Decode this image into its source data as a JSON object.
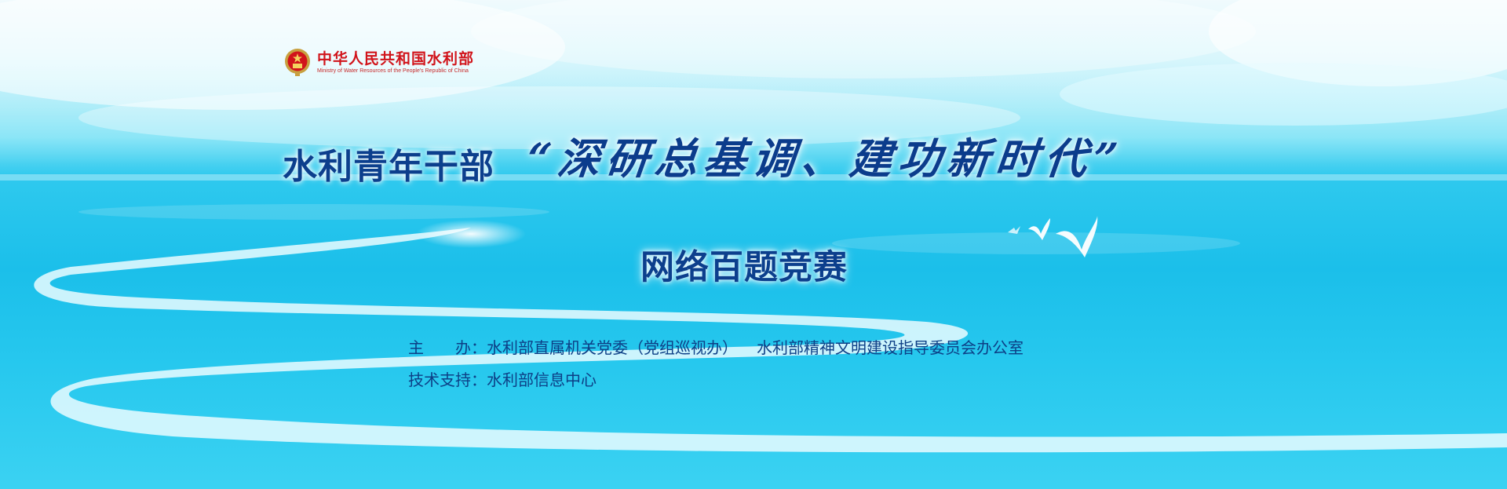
{
  "logo": {
    "name_cn": "中华人民共和国水利部",
    "name_en": "Ministry of Water Resources of the People's Republic of China",
    "emblem_icon": "national-emblem-icon"
  },
  "title": {
    "prefix": "水利青年干部",
    "quote": "“深研总基调、建功新时代”"
  },
  "subtitle": "网络百题竞赛",
  "organizers": {
    "host_label": "主　　办：",
    "host_1": "水利部直属机关党委（党组巡视办）",
    "host_2": "水利部精神文明建设指导委员会办公室",
    "tech_label": "技术支持：",
    "tech": "水利部信息中心"
  },
  "colors": {
    "title": "#0c3f8d",
    "logo": "#d1141b",
    "sea": "#1bbfea",
    "sky": "#d9f4fb"
  }
}
